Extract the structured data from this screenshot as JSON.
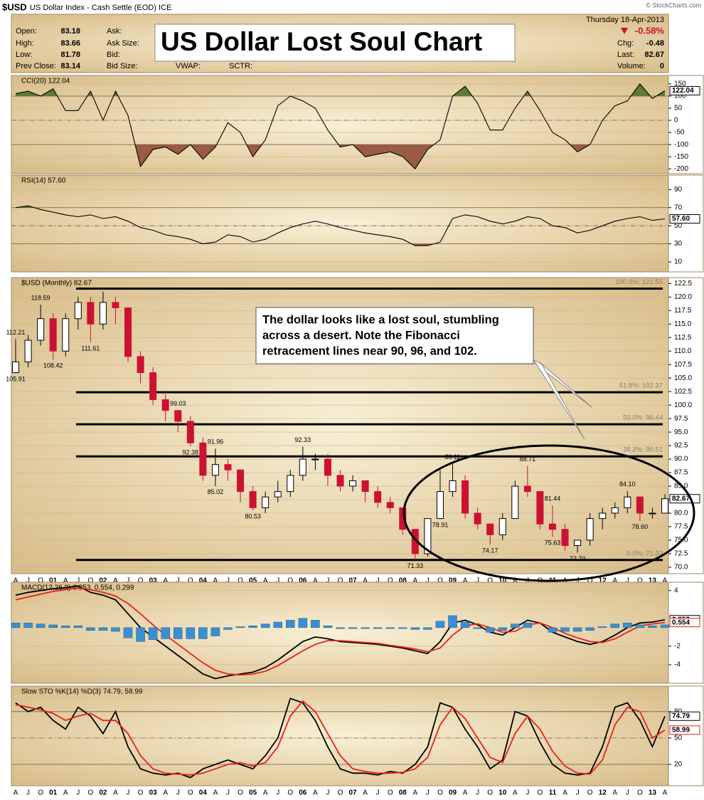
{
  "header": {
    "symbol": "$USD",
    "description": "US Dollar Index - Cash Settle (EOD) ICE",
    "copyright": "© StockCharts.com",
    "date": "Thursday 18-Apr-2013",
    "left": [
      {
        "label": "Open:",
        "value": 83.18
      },
      {
        "label": "High:",
        "value": 83.66
      },
      {
        "label": "Low:",
        "value": 81.78
      },
      {
        "label": "Prev Close:",
        "value": 83.14
      }
    ],
    "middle": [
      "Ask:",
      "Ask Size:",
      "Bid:",
      "Bid Size:"
    ],
    "extra": [
      "VWAP:",
      "SCTR:"
    ],
    "change_pct": "-0.58%",
    "right": [
      {
        "label": "Chg:",
        "value": -0.48
      },
      {
        "label": "Last:",
        "value": 82.67
      },
      {
        "label": "Volume:",
        "value": 0
      }
    ]
  },
  "title": "US Dollar Lost Soul Chart",
  "annotation": {
    "lines": [
      "The dollar looks like a lost soul, stumbling",
      "across a desert.  Note the Fibonacci",
      "retracement lines near 90, 96, and 102."
    ]
  },
  "chart_data": [
    {
      "type": "line",
      "title": "CCI(20) 122.04",
      "color": "#000000",
      "values": [
        110,
        120,
        100,
        130,
        40,
        40,
        120,
        0,
        120,
        20,
        -190,
        -120,
        -110,
        -140,
        -100,
        -160,
        -110,
        -10,
        -50,
        -150,
        -80,
        60,
        100,
        80,
        50,
        -40,
        -110,
        -100,
        -150,
        -140,
        -130,
        -150,
        -200,
        -120,
        -80,
        100,
        140,
        70,
        -40,
        -40,
        50,
        120,
        40,
        -50,
        -80,
        -130,
        -100,
        0,
        60,
        80,
        150,
        90,
        122.04
      ],
      "ylim": [
        -220,
        185
      ],
      "yticks": [
        150,
        100,
        50,
        0,
        -50,
        -100,
        -150,
        -200
      ],
      "reference_lines": [
        {
          "value": 100,
          "style": "solid"
        },
        {
          "value": 0,
          "style": "dashed"
        },
        {
          "value": -100,
          "style": "solid"
        }
      ],
      "fills": [
        {
          "level": 100,
          "side": "above",
          "color": "#5e7a36"
        },
        {
          "level": -100,
          "side": "below",
          "color": "#9a5b45"
        }
      ]
    },
    {
      "type": "line",
      "title": "RSI(14) 57.60",
      "color": "#000000",
      "values": [
        70,
        72,
        68,
        65,
        62,
        60,
        62,
        58,
        60,
        55,
        48,
        45,
        40,
        38,
        35,
        30,
        32,
        40,
        38,
        32,
        35,
        42,
        48,
        52,
        55,
        52,
        48,
        45,
        42,
        40,
        38,
        35,
        28,
        28,
        32,
        58,
        62,
        60,
        55,
        52,
        55,
        60,
        58,
        50,
        48,
        42,
        45,
        50,
        55,
        58,
        60,
        56,
        57.6
      ],
      "value_labels": [
        null,
        null,
        null,
        null,
        null,
        null,
        null,
        null,
        null,
        null,
        null,
        null,
        null,
        null,
        null,
        null,
        null,
        null,
        null,
        null,
        null,
        null,
        null,
        null,
        null,
        null,
        null,
        null,
        null,
        null,
        null,
        null,
        null,
        null,
        null,
        null,
        null,
        null,
        null,
        null,
        null,
        null,
        null,
        null,
        null,
        null,
        null,
        null,
        null,
        null,
        null,
        null,
        "57.60"
      ],
      "ylim": [
        -1,
        106
      ],
      "yticks": [
        90,
        70,
        50,
        30,
        10
      ],
      "reference_lines": [
        {
          "value": 70,
          "style": "solid"
        },
        {
          "value": 50,
          "style": "dashed"
        },
        {
          "value": 30,
          "style": "solid"
        }
      ],
      "fills": [
        {
          "level": 70,
          "side": "above",
          "color": "#5e7a36"
        },
        {
          "level": 30,
          "side": "below",
          "color": "#9a5b45"
        }
      ]
    },
    {
      "type": "candlestick",
      "title": "$USD (Monthly) 82.67",
      "categories": [
        "A",
        "J",
        "O",
        "01",
        "A",
        "J",
        "O",
        "02",
        "A",
        "J",
        "O",
        "03",
        "A",
        "J",
        "O",
        "04",
        "A",
        "J",
        "O",
        "05",
        "A",
        "J",
        "O",
        "06",
        "A",
        "J",
        "O",
        "07",
        "A",
        "J",
        "O",
        "08",
        "A",
        "J",
        "O",
        "09",
        "A",
        "J",
        "O",
        "10",
        "A",
        "J",
        "O",
        "11",
        "A",
        "J",
        "O",
        "12",
        "A",
        "J",
        "O",
        "13",
        "A"
      ],
      "open": [
        106,
        108,
        112,
        116,
        110,
        116,
        119,
        115,
        119,
        118,
        109,
        106,
        101,
        99,
        97,
        93,
        87,
        89,
        88,
        84,
        81,
        83,
        84,
        87,
        90,
        90,
        87,
        85,
        86,
        84,
        82,
        81,
        77,
        72.5,
        79,
        84,
        86,
        80,
        78,
        76,
        79,
        85,
        84,
        78,
        77,
        74,
        75,
        79,
        80,
        81,
        83,
        80,
        80
      ],
      "high": [
        112.21,
        113,
        118.59,
        117,
        117,
        120,
        120,
        121,
        120,
        118,
        110,
        107,
        102,
        99.03,
        98,
        94,
        91.96,
        90,
        88,
        85,
        84,
        86,
        88,
        92.33,
        91,
        91,
        88,
        87,
        86,
        85,
        83,
        81,
        77,
        79,
        88,
        89.11,
        87,
        81,
        78,
        80,
        86,
        88.71,
        84,
        81.44,
        78,
        75,
        80,
        81,
        82,
        84.1,
        83,
        81,
        83.5
      ],
      "low": [
        105.91,
        107,
        111,
        108.42,
        109,
        114,
        111.61,
        114,
        115,
        108,
        104,
        100,
        97,
        95,
        92.38,
        86,
        85.02,
        86,
        82,
        80.53,
        80,
        82,
        83,
        86,
        88,
        85,
        84,
        84,
        82,
        81,
        80,
        76,
        71.33,
        72,
        78.91,
        83,
        79,
        77,
        74.17,
        75,
        79,
        83,
        77,
        75.63,
        73,
        72.7,
        74,
        77,
        79,
        80,
        78.6,
        79,
        80
      ],
      "close": [
        108,
        112,
        116,
        110,
        116,
        119,
        115,
        119,
        118,
        109,
        106,
        101,
        99,
        97,
        93,
        87,
        89,
        88,
        84,
        81,
        83,
        84,
        87,
        90,
        90,
        87,
        85,
        86,
        84,
        82,
        81,
        77,
        72.5,
        79,
        84,
        86,
        80,
        78,
        76,
        79,
        85,
        84,
        78,
        77,
        74,
        75,
        79,
        80,
        81,
        83,
        80,
        80,
        82.67
      ],
      "high_labels": [
        "112.21",
        null,
        "118.59",
        null,
        null,
        null,
        null,
        null,
        null,
        null,
        null,
        null,
        null,
        "99.03",
        null,
        null,
        "91.96",
        null,
        null,
        null,
        null,
        null,
        null,
        "92.33",
        null,
        null,
        null,
        null,
        null,
        null,
        null,
        null,
        null,
        null,
        null,
        "89.11",
        null,
        null,
        null,
        null,
        null,
        "88.71",
        null,
        "81.44",
        null,
        null,
        null,
        null,
        null,
        "84.10",
        null,
        null,
        null
      ],
      "low_labels": [
        "105.91",
        null,
        null,
        "108.42",
        null,
        null,
        "111.61",
        null,
        null,
        null,
        null,
        null,
        null,
        null,
        "92.38",
        null,
        "85.02",
        null,
        null,
        "80.53",
        null,
        null,
        null,
        null,
        null,
        null,
        null,
        null,
        null,
        null,
        null,
        null,
        "71.33",
        null,
        "78.91",
        null,
        null,
        null,
        "74.17",
        null,
        null,
        null,
        null,
        "75.63",
        null,
        "72.70",
        null,
        null,
        null,
        null,
        "78.60",
        null,
        null
      ],
      "up_color": "#ffffff",
      "down_color": "#cc1133",
      "ylim": [
        68.8,
        123.6
      ],
      "yticks": [
        122.5,
        {
          "value": 120,
          "label": "120.0"
        },
        117.5,
        {
          "value": 115,
          "label": "115.0"
        },
        112.5,
        {
          "value": 110,
          "label": "110.0"
        },
        107.5,
        {
          "value": 105,
          "label": "105.0"
        },
        102.5,
        {
          "value": 100,
          "label": "100.0"
        },
        97.5,
        {
          "value": 95,
          "label": "95.0"
        },
        92.5,
        {
          "value": 90,
          "label": "90.0"
        },
        87.5,
        {
          "value": 85,
          "label": "85.0"
        },
        82.5,
        {
          "value": 80,
          "label": "80.0"
        },
        77.5,
        {
          "value": 75,
          "label": "75.0"
        },
        72.5,
        {
          "value": 70,
          "label": "70.0"
        }
      ],
      "fib_color": "#000000",
      "fib_levels": [
        {
          "value": 121.55,
          "label": "100.0%: 121.55"
        },
        {
          "value": 102.37,
          "label": "61.8%: 102.37"
        },
        {
          "value": 96.44,
          "label": "50.0%: 96.44"
        },
        {
          "value": 90.51,
          "label": "38.2%: 90.51"
        },
        {
          "value": 71.33,
          "label": "0.0%: 71.33"
        }
      ]
    },
    {
      "type": "line",
      "title": "MACD(12,26,9) 0.853, 0.554, 0.299",
      "series": [
        {
          "color": "#000000",
          "values": [
            3.5,
            3.8,
            4,
            4.2,
            4.3,
            4.5,
            3.8,
            3.5,
            3,
            1.5,
            0,
            -1,
            -2,
            -3,
            -4,
            -5,
            -5.5,
            -5.2,
            -5,
            -4.8,
            -4.3,
            -3.5,
            -2.5,
            -1.5,
            -1,
            -1.2,
            -1.5,
            -1.6,
            -1.7,
            -1.8,
            -2,
            -2.2,
            -2.5,
            -2.8,
            -1.5,
            0.5,
            0.8,
            0.3,
            -0.5,
            -0.8,
            0,
            0.8,
            0.5,
            -0.5,
            -1,
            -1.5,
            -1.8,
            -1.5,
            -0.8,
            0,
            0.5,
            0.6,
            0.853
          ]
        },
        {
          "color": "#e8211b",
          "values": [
            3,
            3.3,
            3.6,
            3.9,
            4.1,
            4.3,
            4.1,
            3.8,
            3.4,
            2.6,
            1.5,
            0.3,
            -0.8,
            -1.8,
            -2.8,
            -3.8,
            -4.6,
            -5,
            -5.1,
            -5,
            -4.7,
            -4.1,
            -3.3,
            -2.5,
            -1.8,
            -1.4,
            -1.4,
            -1.5,
            -1.6,
            -1.7,
            -1.9,
            -2.1,
            -2.3,
            -2.6,
            -2.2,
            -0.8,
            0.2,
            0.4,
            0,
            -0.5,
            -0.4,
            0.3,
            0.5,
            0,
            -0.6,
            -1.1,
            -1.5,
            -1.6,
            -1.2,
            -0.5,
            0.2,
            0.4,
            0.554
          ]
        },
        {
          "type": "bar",
          "color": "#3b8fd0",
          "values": [
            0.5,
            0.5,
            0.4,
            0.3,
            0.2,
            0.2,
            -0.3,
            -0.3,
            -0.4,
            -1.1,
            -1.5,
            -1.3,
            -1.2,
            -1.2,
            -1.2,
            -1.2,
            -0.9,
            -0.2,
            0.1,
            0.2,
            0.4,
            0.6,
            0.8,
            1,
            0.8,
            0.2,
            -0.1,
            -0.1,
            -0.1,
            -0.1,
            -0.1,
            -0.1,
            -0.2,
            -0.2,
            0.7,
            1.3,
            0.6,
            -0.1,
            -0.5,
            -0.3,
            0.4,
            0.5,
            0,
            -0.5,
            -0.4,
            -0.4,
            -0.3,
            0.1,
            0.4,
            0.5,
            0.3,
            0.2,
            0.299
          ]
        }
      ],
      "ylim": [
        -6,
        4.9
      ],
      "yticks": [
        4,
        -2,
        -4
      ]
    },
    {
      "type": "line",
      "title": "Slow STO %K(14) %D(3) 74.79, 58.99",
      "categories": [
        "A",
        "J",
        "O",
        "01",
        "A",
        "J",
        "O",
        "02",
        "A",
        "J",
        "O",
        "03",
        "A",
        "J",
        "O",
        "04",
        "A",
        "J",
        "O",
        "05",
        "A",
        "J",
        "O",
        "06",
        "A",
        "J",
        "O",
        "07",
        "A",
        "J",
        "O",
        "08",
        "A",
        "J",
        "O",
        "09",
        "A",
        "J",
        "O",
        "10",
        "A",
        "J",
        "O",
        "11",
        "A",
        "J",
        "O",
        "12",
        "A",
        "J",
        "O",
        "13",
        "A"
      ],
      "series": [
        {
          "color": "#000000",
          "values": [
            90,
            80,
            85,
            70,
            60,
            85,
            75,
            55,
            80,
            40,
            15,
            10,
            8,
            10,
            5,
            15,
            20,
            25,
            20,
            15,
            30,
            50,
            95,
            90,
            70,
            40,
            15,
            10,
            10,
            8,
            12,
            10,
            20,
            40,
            90,
            85,
            60,
            40,
            15,
            25,
            80,
            75,
            45,
            20,
            10,
            8,
            10,
            40,
            85,
            90,
            70,
            40,
            74.79
          ]
        },
        {
          "color": "#e8211b",
          "values": [
            88,
            85,
            82,
            78,
            70,
            75,
            78,
            70,
            70,
            55,
            30,
            15,
            10,
            9,
            8,
            10,
            15,
            20,
            22,
            18,
            22,
            40,
            75,
            92,
            80,
            55,
            30,
            15,
            12,
            10,
            10,
            11,
            15,
            28,
            65,
            85,
            72,
            50,
            28,
            22,
            55,
            75,
            60,
            35,
            18,
            10,
            9,
            25,
            65,
            85,
            80,
            50,
            58.99
          ]
        }
      ],
      "ylim": [
        -4.3,
        109
      ],
      "yticks": [
        80,
        50,
        20
      ],
      "reference_lines": [
        {
          "value": 80,
          "style": "solid"
        },
        {
          "value": 50,
          "style": "dashed"
        },
        {
          "value": 20,
          "style": "solid"
        }
      ]
    }
  ]
}
